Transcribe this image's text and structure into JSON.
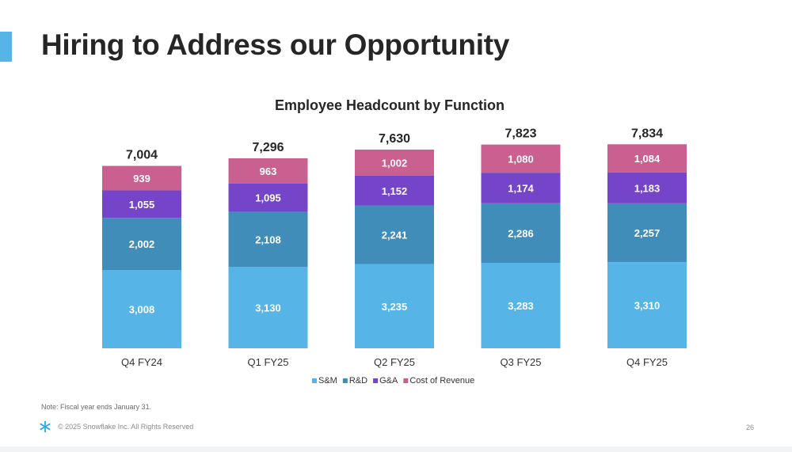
{
  "slide": {
    "title": "Hiring to Address our Opportunity",
    "accent_color": "#56b4e6",
    "note": "Note: Fiscal year ends January 31.",
    "copyright": "© 2025 Snowflake Inc. All Rights Reserved",
    "page_number": "26",
    "logo_icon": "snowflake-logo-icon"
  },
  "chart_data": {
    "type": "bar",
    "stacked": true,
    "title": "Employee Headcount by Function",
    "xlabel": "",
    "ylabel": "",
    "categories": [
      "Q4 FY24",
      "Q1 FY25",
      "Q2 FY25",
      "Q3 FY25",
      "Q4 FY25"
    ],
    "totals": [
      "7,004",
      "7,296",
      "7,630",
      "7,823",
      "7,834"
    ],
    "series": [
      {
        "name": "S&M",
        "color": "#56b4e6",
        "values": [
          3008,
          3130,
          3235,
          3283,
          3310
        ]
      },
      {
        "name": "R&D",
        "color": "#3f8db8",
        "values": [
          2002,
          2108,
          2241,
          2286,
          2257
        ]
      },
      {
        "name": "G&A",
        "color": "#7545c9",
        "values": [
          1055,
          1095,
          1152,
          1174,
          1183
        ]
      },
      {
        "name": "Cost of Revenue",
        "color": "#c9608f",
        "values": [
          939,
          963,
          1002,
          1080,
          1084
        ]
      }
    ],
    "ylim": [
      0,
      8000
    ],
    "grid": false,
    "legend_position": "bottom"
  }
}
